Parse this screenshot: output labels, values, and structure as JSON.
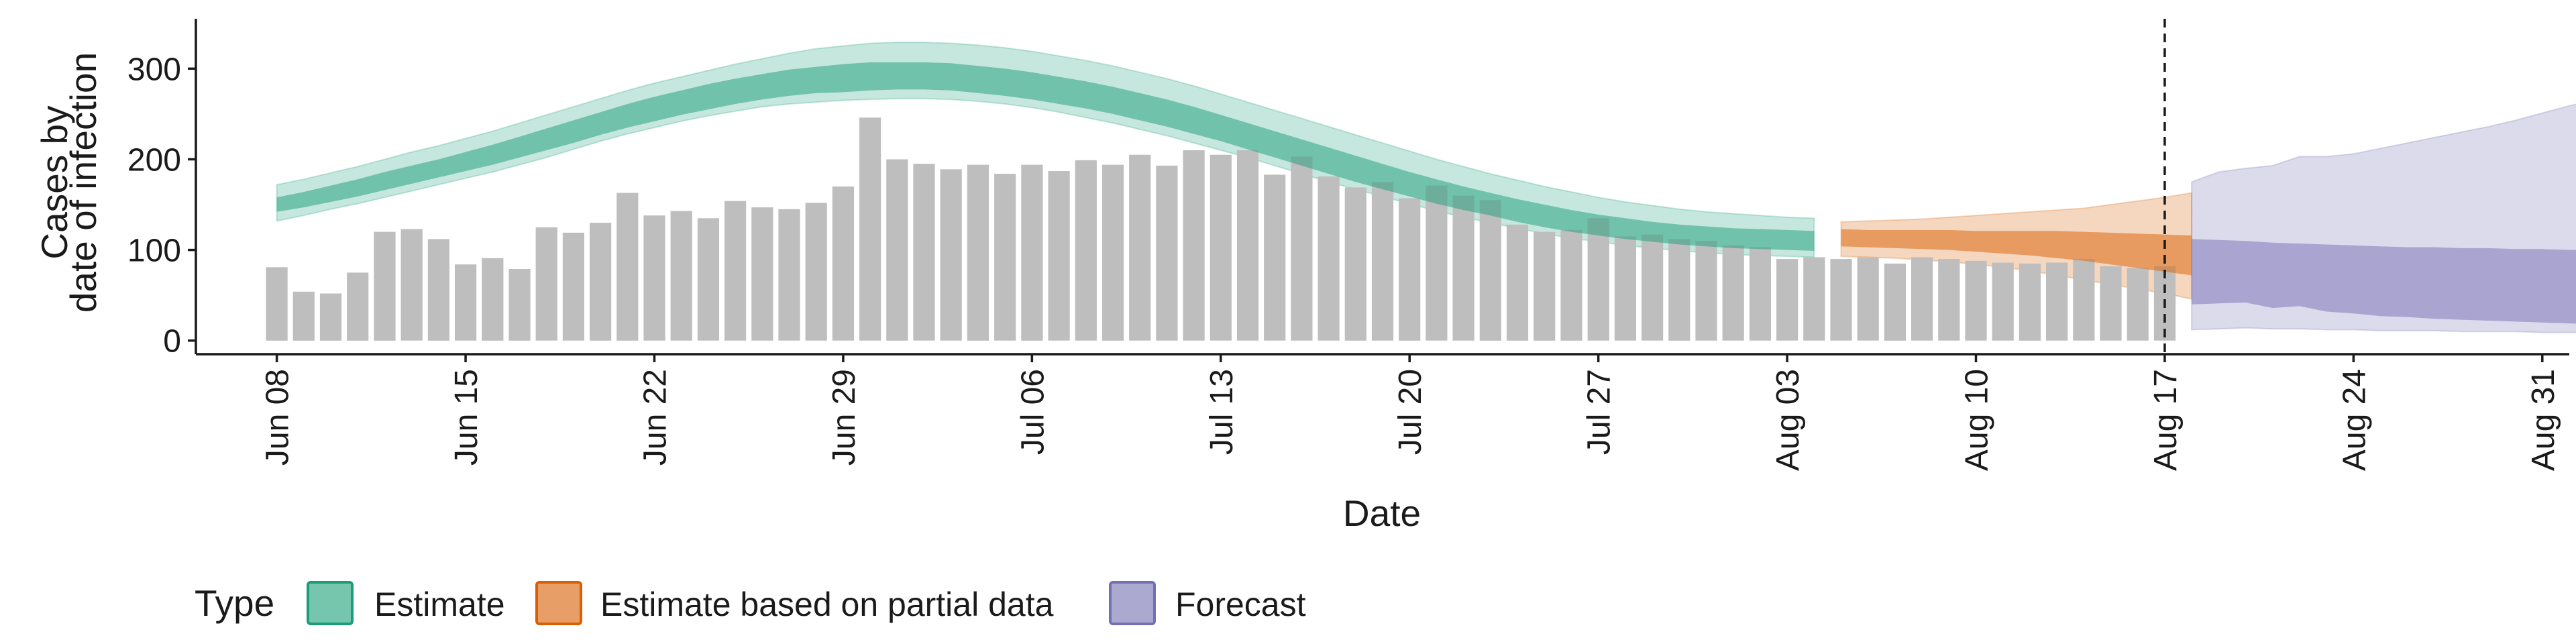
{
  "chart_data": {
    "type": "bar",
    "xlabel": "Date",
    "ylabel_lines": [
      "Cases by",
      "date of infection"
    ],
    "ylim": [
      -15,
      355
    ],
    "xlim": [
      "2020-06-05",
      "2020-09-01"
    ],
    "y_ticks": [
      0,
      100,
      200,
      300
    ],
    "x_ticks": [
      {
        "date": "2020-06-08",
        "label": "Jun 08"
      },
      {
        "date": "2020-06-15",
        "label": "Jun 15"
      },
      {
        "date": "2020-06-22",
        "label": "Jun 22"
      },
      {
        "date": "2020-06-29",
        "label": "Jun 29"
      },
      {
        "date": "2020-07-06",
        "label": "Jul 06"
      },
      {
        "date": "2020-07-13",
        "label": "Jul 13"
      },
      {
        "date": "2020-07-20",
        "label": "Jul 20"
      },
      {
        "date": "2020-07-27",
        "label": "Jul 27"
      },
      {
        "date": "2020-08-03",
        "label": "Aug 03"
      },
      {
        "date": "2020-08-10",
        "label": "Aug 10"
      },
      {
        "date": "2020-08-17",
        "label": "Aug 17"
      },
      {
        "date": "2020-08-24",
        "label": "Aug 24"
      },
      {
        "date": "2020-08-31",
        "label": "Aug 31"
      }
    ],
    "vline_date": "2020-08-17",
    "grid": false,
    "legend": {
      "position": "bottom",
      "title": "Type",
      "entries": [
        {
          "label": "Estimate",
          "color": "#1b9e77"
        },
        {
          "label": "Estimate based on partial data",
          "color": "#d95f02"
        },
        {
          "label": "Forecast",
          "color": "#7570b3"
        }
      ]
    },
    "colors": {
      "bars": "#bebebe",
      "estimate": "#1b9e77",
      "partial": "#d95f02",
      "forecast": "#7570b3"
    },
    "bars": {
      "start_date": "2020-06-08",
      "values": [
        81,
        54,
        52,
        75,
        120,
        123,
        112,
        84,
        91,
        79,
        125,
        119,
        130,
        163,
        138,
        143,
        135,
        154,
        147,
        145,
        152,
        170,
        246,
        200,
        195,
        189,
        194,
        184,
        194,
        187,
        199,
        194,
        205,
        193,
        210,
        205,
        210,
        183,
        203,
        181,
        169,
        175,
        157,
        171,
        160,
        155,
        128,
        120,
        122,
        135,
        115,
        117,
        112,
        110,
        105,
        103,
        90,
        92,
        90,
        92,
        85,
        92,
        90,
        88,
        86,
        85,
        86,
        90,
        82,
        80,
        82
      ]
    },
    "series": [
      {
        "name": "Estimate",
        "start_date": "2020-06-08",
        "median": [
          148,
          154,
          161,
          168,
          175,
          182,
          189,
          196,
          204,
          212,
          220,
          229,
          238,
          246,
          254,
          261,
          268,
          274,
          279,
          284,
          287,
          289,
          291,
          292,
          292,
          291,
          288,
          285,
          281,
          276,
          271,
          265,
          258,
          251,
          243,
          234,
          225,
          216,
          207,
          198,
          189,
          180,
          172,
          164,
          157,
          150,
          143,
          137,
          132,
          127,
          123,
          120,
          117,
          115,
          113,
          112,
          111,
          110
        ],
        "inner": [
          [
            142,
            158
          ],
          [
            147,
            164
          ],
          [
            153,
            171
          ],
          [
            159,
            178
          ],
          [
            166,
            186
          ],
          [
            173,
            193
          ],
          [
            180,
            200
          ],
          [
            187,
            208
          ],
          [
            194,
            216
          ],
          [
            202,
            225
          ],
          [
            210,
            234
          ],
          [
            218,
            243
          ],
          [
            227,
            252
          ],
          [
            235,
            261
          ],
          [
            242,
            269
          ],
          [
            249,
            276
          ],
          [
            255,
            283
          ],
          [
            261,
            289
          ],
          [
            266,
            294
          ],
          [
            270,
            299
          ],
          [
            273,
            302
          ],
          [
            274,
            305
          ],
          [
            276,
            307
          ],
          [
            277,
            307
          ],
          [
            277,
            307
          ],
          [
            276,
            306
          ],
          [
            273,
            303
          ],
          [
            270,
            300
          ],
          [
            266,
            296
          ],
          [
            261,
            291
          ],
          [
            256,
            286
          ],
          [
            250,
            280
          ],
          [
            243,
            273
          ],
          [
            236,
            266
          ],
          [
            228,
            258
          ],
          [
            220,
            249
          ],
          [
            211,
            240
          ],
          [
            202,
            231
          ],
          [
            193,
            222
          ],
          [
            184,
            213
          ],
          [
            175,
            204
          ],
          [
            167,
            195
          ],
          [
            159,
            186
          ],
          [
            151,
            178
          ],
          [
            144,
            170
          ],
          [
            138,
            163
          ],
          [
            131,
            156
          ],
          [
            125,
            150
          ],
          [
            120,
            144
          ],
          [
            116,
            139
          ],
          [
            112,
            135
          ],
          [
            109,
            131
          ],
          [
            106,
            128
          ],
          [
            104,
            126
          ],
          [
            102,
            124
          ],
          [
            101,
            123
          ],
          [
            100,
            122
          ],
          [
            99,
            121
          ]
        ],
        "outer": [
          [
            132,
            172
          ],
          [
            138,
            178
          ],
          [
            145,
            185
          ],
          [
            151,
            192
          ],
          [
            158,
            200
          ],
          [
            165,
            208
          ],
          [
            172,
            215
          ],
          [
            179,
            223
          ],
          [
            186,
            231
          ],
          [
            194,
            240
          ],
          [
            202,
            249
          ],
          [
            211,
            258
          ],
          [
            220,
            267
          ],
          [
            228,
            276
          ],
          [
            235,
            284
          ],
          [
            242,
            291
          ],
          [
            248,
            298
          ],
          [
            253,
            305
          ],
          [
            258,
            311
          ],
          [
            261,
            317
          ],
          [
            263,
            322
          ],
          [
            265,
            325
          ],
          [
            266,
            328
          ],
          [
            267,
            329
          ],
          [
            267,
            329
          ],
          [
            266,
            328
          ],
          [
            264,
            326
          ],
          [
            261,
            323
          ],
          [
            257,
            319
          ],
          [
            252,
            314
          ],
          [
            246,
            309
          ],
          [
            240,
            303
          ],
          [
            233,
            296
          ],
          [
            226,
            289
          ],
          [
            218,
            281
          ],
          [
            210,
            272
          ],
          [
            202,
            263
          ],
          [
            193,
            254
          ],
          [
            184,
            245
          ],
          [
            175,
            236
          ],
          [
            167,
            227
          ],
          [
            159,
            218
          ],
          [
            151,
            209
          ],
          [
            143,
            200
          ],
          [
            136,
            192
          ],
          [
            130,
            184
          ],
          [
            124,
            177
          ],
          [
            118,
            170
          ],
          [
            113,
            164
          ],
          [
            109,
            158
          ],
          [
            105,
            153
          ],
          [
            102,
            149
          ],
          [
            99,
            145
          ],
          [
            97,
            142
          ],
          [
            95,
            140
          ],
          [
            94,
            138
          ],
          [
            93,
            136
          ],
          [
            92,
            135
          ]
        ]
      },
      {
        "name": "Estimate based on partial data",
        "start_date": "2020-08-05",
        "median": [
          114,
          113,
          112,
          111,
          110,
          109,
          108,
          107,
          106,
          104,
          102,
          99,
          97,
          94
        ],
        "inner": [
          [
            104,
            123
          ],
          [
            103,
            122
          ],
          [
            102,
            122
          ],
          [
            101,
            122
          ],
          [
            100,
            122
          ],
          [
            98,
            121
          ],
          [
            96,
            121
          ],
          [
            94,
            121
          ],
          [
            91,
            121
          ],
          [
            88,
            120
          ],
          [
            84,
            119
          ],
          [
            80,
            118
          ],
          [
            76,
            117
          ],
          [
            72,
            116
          ]
        ],
        "outer": [
          [
            93,
            131
          ],
          [
            92,
            132
          ],
          [
            91,
            133
          ],
          [
            89,
            134
          ],
          [
            87,
            136
          ],
          [
            84,
            138
          ],
          [
            81,
            140
          ],
          [
            77,
            142
          ],
          [
            72,
            144
          ],
          [
            67,
            146
          ],
          [
            62,
            150
          ],
          [
            57,
            154
          ],
          [
            52,
            158
          ],
          [
            46,
            163
          ]
        ]
      },
      {
        "name": "Forecast",
        "start_date": "2020-08-18",
        "median": [
          95,
          94,
          93,
          91,
          89,
          86,
          84,
          82,
          80,
          78,
          76,
          74,
          72,
          70,
          68,
          66,
          64,
          62,
          60,
          58
        ],
        "inner": [
          [
            40,
            112
          ],
          [
            41,
            111
          ],
          [
            42,
            110
          ],
          [
            36,
            108
          ],
          [
            38,
            107
          ],
          [
            32,
            106
          ],
          [
            30,
            105
          ],
          [
            27,
            104
          ],
          [
            26,
            103
          ],
          [
            24,
            103
          ],
          [
            23,
            102
          ],
          [
            22,
            102
          ],
          [
            21,
            101
          ],
          [
            20,
            101
          ],
          [
            19,
            100
          ],
          [
            18,
            100
          ],
          [
            17,
            99
          ],
          [
            16,
            98
          ],
          [
            15,
            97
          ],
          [
            14,
            96
          ]
        ],
        "outer": [
          [
            12,
            175
          ],
          [
            13,
            186
          ],
          [
            14,
            190
          ],
          [
            13,
            193
          ],
          [
            13,
            203
          ],
          [
            12,
            203
          ],
          [
            12,
            206
          ],
          [
            11,
            212
          ],
          [
            11,
            218
          ],
          [
            11,
            224
          ],
          [
            10,
            230
          ],
          [
            10,
            236
          ],
          [
            10,
            243
          ],
          [
            9,
            251
          ],
          [
            9,
            259
          ],
          [
            9,
            266
          ],
          [
            9,
            273
          ],
          [
            8,
            279
          ],
          [
            8,
            284
          ],
          [
            8,
            289
          ]
        ]
      }
    ]
  }
}
